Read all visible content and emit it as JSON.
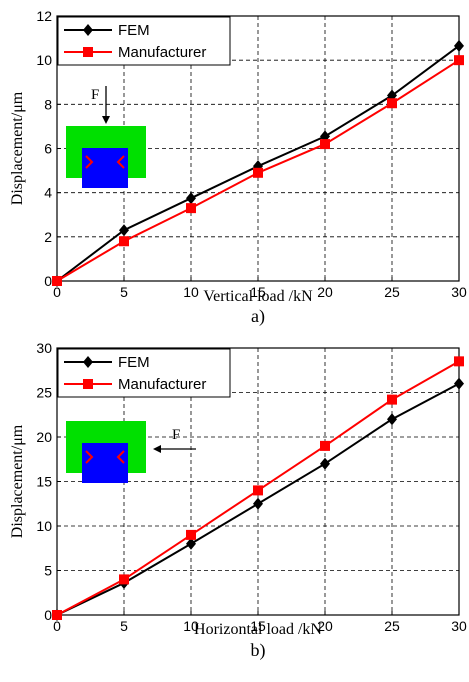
{
  "chart_data": [
    {
      "type": "line",
      "panel_label": "a)",
      "xlabel": "Vertical load /kN",
      "ylabel": "Displacement/μm",
      "xlim": [
        0,
        30
      ],
      "ylim": [
        0,
        12
      ],
      "xticks": [
        0,
        5,
        10,
        15,
        20,
        25,
        30
      ],
      "yticks": [
        0,
        2,
        4,
        6,
        8,
        10,
        12
      ],
      "grid": true,
      "grid_style": "dashed",
      "legend_position": "top-left",
      "x": [
        0,
        5,
        10,
        15,
        20,
        25,
        30
      ],
      "series": [
        {
          "name": "FEM",
          "color": "#000000",
          "marker": "diamond",
          "values": [
            0,
            2.3,
            3.75,
            5.2,
            6.55,
            8.4,
            10.65
          ]
        },
        {
          "name": "Manufacturer",
          "color": "#ff0000",
          "marker": "square",
          "values": [
            0,
            1.8,
            3.3,
            4.9,
            6.2,
            8.05,
            10.0
          ]
        }
      ],
      "inset": {
        "force_label": "F",
        "direction": "vertical"
      }
    },
    {
      "type": "line",
      "panel_label": "b)",
      "xlabel": "Horizontal load /kN",
      "ylabel": "Displacement/μm",
      "xlim": [
        0,
        30
      ],
      "ylim": [
        0,
        30
      ],
      "xticks": [
        0,
        5,
        10,
        15,
        20,
        25,
        30
      ],
      "yticks": [
        0,
        5,
        10,
        15,
        20,
        25,
        30
      ],
      "grid": true,
      "grid_style": "dashed",
      "legend_position": "top-left",
      "x": [
        0,
        5,
        10,
        15,
        20,
        25,
        30
      ],
      "series": [
        {
          "name": "FEM",
          "color": "#000000",
          "marker": "diamond",
          "values": [
            0,
            3.6,
            8.0,
            12.5,
            17.0,
            22.0,
            26.0
          ]
        },
        {
          "name": "Manufacturer",
          "color": "#ff0000",
          "marker": "square",
          "values": [
            0,
            4.0,
            9.0,
            14.0,
            19.0,
            24.2,
            28.5
          ]
        }
      ],
      "inset": {
        "force_label": "F",
        "direction": "horizontal"
      }
    }
  ]
}
